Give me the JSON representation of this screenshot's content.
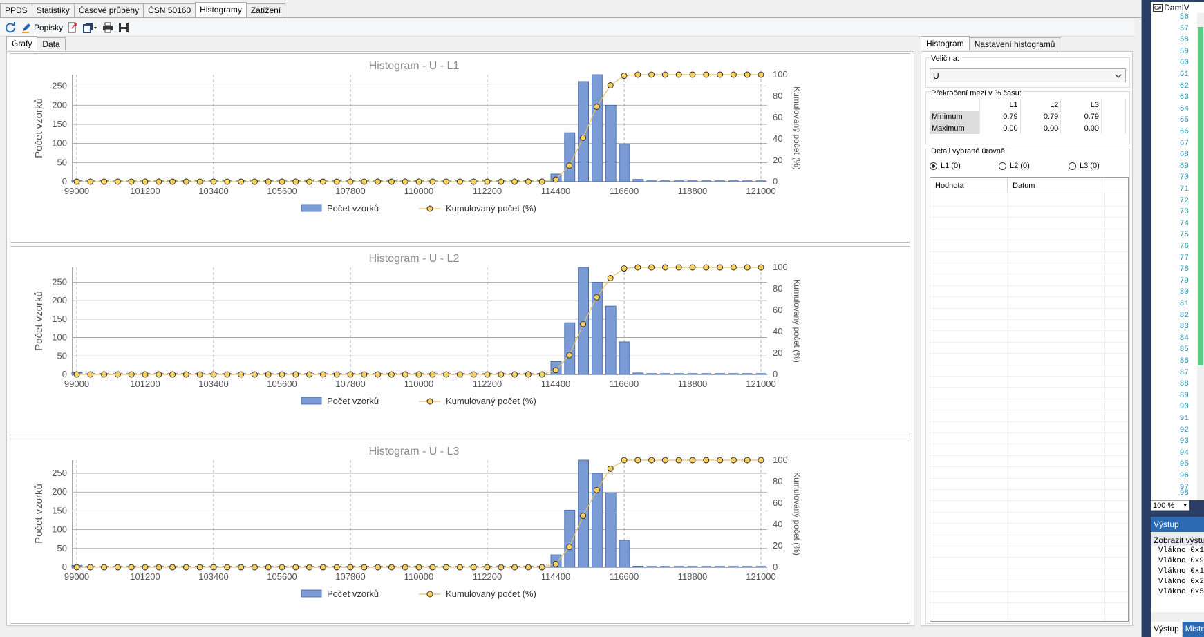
{
  "top_tabs": [
    "PPDS",
    "Statistiky",
    "Časové průběhy",
    "ČSN 50160",
    "Histogramy",
    "Zatížení"
  ],
  "active_top_tab": 4,
  "toolbar": {
    "popisky": "Popisky"
  },
  "sub_tabs": [
    "Grafy",
    "Data"
  ],
  "right_tabs": [
    "Histogram",
    "Nastavení histogramů"
  ],
  "right": {
    "velicina_label": "Veličina:",
    "velicina_value": "U",
    "prekroceni_label": "Překročení mezí v % času:",
    "table_headers": [
      "L1",
      "L2",
      "L3"
    ],
    "rows": [
      {
        "label": "Minimum",
        "values": [
          "0.79",
          "0.79",
          "0.79"
        ]
      },
      {
        "label": "Maximum",
        "values": [
          "0.00",
          "0.00",
          "0.00"
        ]
      }
    ],
    "detail_label": "Detail vybrané úrovně:",
    "radios": [
      "L1 (0)",
      "L2 (0)",
      "L3 (0)"
    ],
    "selected_radio": 0,
    "list_headers": [
      "Hodnota",
      "Datum"
    ]
  },
  "ide": {
    "title": "DamIV",
    "line_numbers": [
      "56",
      "57",
      "58",
      "59",
      "60",
      "61",
      "62",
      "63",
      "64",
      "65",
      "66",
      "67",
      "68",
      "69",
      "70",
      "71",
      "72",
      "73",
      "74",
      "75",
      "76",
      "77",
      "78",
      "79",
      "80",
      "81",
      "82",
      "83",
      "84",
      "85",
      "86",
      "87",
      "88",
      "89",
      "90",
      "91",
      "92",
      "93",
      "94",
      "95",
      "96",
      "97",
      "98"
    ],
    "zoom": "100 %",
    "output_title": "Výstup",
    "output_sub": "Zobrazit výstup",
    "output_lines": [
      "Vlákno 0x1",
      "Vlákno 0x9",
      "Vlákno 0x1",
      "Vlákno 0x2",
      "Vlákno 0x5"
    ],
    "bottom_tabs": [
      "Výstup",
      "Místní"
    ]
  },
  "colors": {
    "bar": "#7b9bd6",
    "bar_stroke": "#3f5f9f",
    "line": "#e8c060",
    "marker": "#f7d060",
    "marker_stroke": "#222222",
    "title": "#8a8a8a",
    "accent": "#2b6ab3"
  },
  "chart_data": [
    {
      "type": "bar",
      "title": "Histogram - U - L1",
      "ylabel": "Počet vzorků",
      "y2label": "Kumulovaný počet (%)",
      "legend": [
        "Počet vzorků",
        "Kumulovaný počet (%)"
      ],
      "xlim": [
        99000,
        121000
      ],
      "ylim": [
        0,
        280
      ],
      "y2lim": [
        0,
        100
      ],
      "x_ticks": [
        99000,
        101200,
        103400,
        105600,
        107800,
        110000,
        112200,
        114400,
        116600,
        118800,
        121000
      ],
      "y_ticks": [
        0,
        50,
        100,
        150,
        200,
        250
      ],
      "y2_ticks": [
        0,
        20,
        40,
        60,
        80,
        100
      ],
      "bars": [
        {
          "x": 99000,
          "value": 4
        },
        {
          "x": 114400,
          "value": 20
        },
        {
          "x": 114840,
          "value": 128
        },
        {
          "x": 115280,
          "value": 262
        },
        {
          "x": 115720,
          "value": 280
        },
        {
          "x": 116160,
          "value": 200
        },
        {
          "x": 116600,
          "value": 98
        },
        {
          "x": 117040,
          "value": 6
        }
      ],
      "cumulative": {
        "x": [
          99000,
          99440,
          99880,
          100320,
          100760,
          101200,
          101640,
          102080,
          102520,
          102960,
          103400,
          103840,
          104280,
          104720,
          105160,
          105600,
          106040,
          106480,
          106920,
          107360,
          107800,
          108240,
          108680,
          109120,
          109560,
          110000,
          110440,
          110880,
          111320,
          111760,
          112200,
          112640,
          113080,
          113520,
          113960,
          114400,
          114840,
          115280,
          115720,
          116160,
          116600,
          117040,
          117480,
          117920,
          118360,
          118800,
          119240,
          119680,
          120120,
          120560,
          121000
        ],
        "y": [
          0,
          0,
          0,
          0,
          0,
          0,
          0,
          0,
          0,
          0,
          0,
          0,
          0,
          0,
          0,
          0,
          0,
          0,
          0,
          0,
          0,
          0,
          0,
          0,
          0,
          0,
          0,
          0,
          0,
          0,
          0,
          0,
          0,
          0,
          0,
          2,
          15,
          41,
          70,
          90,
          99,
          100,
          100,
          100,
          100,
          100,
          100,
          100,
          100,
          100,
          100
        ]
      }
    },
    {
      "type": "bar",
      "title": "Histogram - U - L2",
      "ylabel": "Počet vzorků",
      "y2label": "Kumulovaný počet (%)",
      "legend": [
        "Počet vzorků",
        "Kumulovaný počet (%)"
      ],
      "xlim": [
        99000,
        121000
      ],
      "ylim": [
        0,
        290
      ],
      "y2lim": [
        0,
        100
      ],
      "x_ticks": [
        99000,
        101200,
        103400,
        105600,
        107800,
        110000,
        112200,
        114400,
        116600,
        118800,
        121000
      ],
      "y_ticks": [
        0,
        50,
        100,
        150,
        200,
        250
      ],
      "y2_ticks": [
        0,
        20,
        40,
        60,
        80,
        100
      ],
      "bars": [
        {
          "x": 99000,
          "value": 5
        },
        {
          "x": 114400,
          "value": 35
        },
        {
          "x": 114840,
          "value": 140
        },
        {
          "x": 115280,
          "value": 290
        },
        {
          "x": 115720,
          "value": 250
        },
        {
          "x": 116160,
          "value": 185
        },
        {
          "x": 116600,
          "value": 88
        },
        {
          "x": 117040,
          "value": 4
        }
      ],
      "cumulative": {
        "x": [
          99000,
          99440,
          99880,
          100320,
          100760,
          101200,
          101640,
          102080,
          102520,
          102960,
          103400,
          103840,
          104280,
          104720,
          105160,
          105600,
          106040,
          106480,
          106920,
          107360,
          107800,
          108240,
          108680,
          109120,
          109560,
          110000,
          110440,
          110880,
          111320,
          111760,
          112200,
          112640,
          113080,
          113520,
          113960,
          114400,
          114840,
          115280,
          115720,
          116160,
          116600,
          117040,
          117480,
          117920,
          118360,
          118800,
          119240,
          119680,
          120120,
          120560,
          121000
        ],
        "y": [
          0,
          0,
          0,
          0,
          0,
          0,
          0,
          0,
          0,
          0,
          0,
          0,
          0,
          0,
          0,
          0,
          0,
          0,
          0,
          0,
          0,
          0,
          0,
          0,
          0,
          0,
          0,
          0,
          0,
          0,
          0,
          0,
          0,
          0,
          0,
          4,
          18,
          47,
          72,
          90,
          99,
          100,
          100,
          100,
          100,
          100,
          100,
          100,
          100,
          100,
          100
        ]
      }
    },
    {
      "type": "bar",
      "title": "Histogram - U - L3",
      "ylabel": "Počet vzorků",
      "y2label": "Kumulovaný počet (%)",
      "legend": [
        "Počet vzorků",
        "Kumulovaný počet (%)"
      ],
      "xlim": [
        99000,
        121000
      ],
      "ylim": [
        0,
        285
      ],
      "y2lim": [
        0,
        100
      ],
      "x_ticks": [
        99000,
        101200,
        103400,
        105600,
        107800,
        110000,
        112200,
        114400,
        116600,
        118800,
        121000
      ],
      "y_ticks": [
        0,
        50,
        100,
        150,
        200,
        250
      ],
      "y2_ticks": [
        0,
        20,
        40,
        60,
        80,
        100
      ],
      "bars": [
        {
          "x": 99000,
          "value": 5
        },
        {
          "x": 114400,
          "value": 33
        },
        {
          "x": 114840,
          "value": 152
        },
        {
          "x": 115280,
          "value": 285
        },
        {
          "x": 115720,
          "value": 250
        },
        {
          "x": 116160,
          "value": 198
        },
        {
          "x": 116600,
          "value": 72
        },
        {
          "x": 117040,
          "value": 3
        }
      ],
      "cumulative": {
        "x": [
          99000,
          99440,
          99880,
          100320,
          100760,
          101200,
          101640,
          102080,
          102520,
          102960,
          103400,
          103840,
          104280,
          104720,
          105160,
          105600,
          106040,
          106480,
          106920,
          107360,
          107800,
          108240,
          108680,
          109120,
          109560,
          110000,
          110440,
          110880,
          111320,
          111760,
          112200,
          112640,
          113080,
          113520,
          113960,
          114400,
          114840,
          115280,
          115720,
          116160,
          116600,
          117040,
          117480,
          117920,
          118360,
          118800,
          119240,
          119680,
          120120,
          120560,
          121000
        ],
        "y": [
          0,
          0,
          0,
          0,
          0,
          0,
          0,
          0,
          0,
          0,
          0,
          0,
          0,
          0,
          0,
          0,
          0,
          0,
          0,
          0,
          0,
          0,
          0,
          0,
          0,
          0,
          0,
          0,
          0,
          0,
          0,
          0,
          0,
          0,
          0,
          3,
          19,
          48,
          72,
          92,
          100,
          100,
          100,
          100,
          100,
          100,
          100,
          100,
          100,
          100,
          100
        ]
      }
    }
  ]
}
